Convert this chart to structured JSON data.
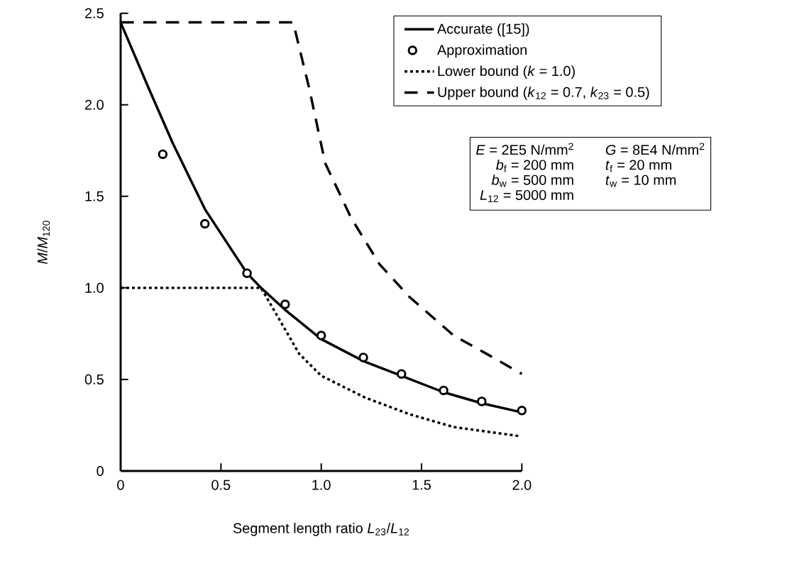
{
  "chart_data": {
    "type": "line",
    "xlabel": "Segment length ratio *L*$_{23}$/*L*$_{12}$",
    "ylabel": "*M*/*M*$_{120}$",
    "xlim": [
      0,
      2.0
    ],
    "ylim": [
      0,
      2.5
    ],
    "xticks": [
      0,
      0.5,
      {
        "value": 1.0,
        "label": "1.0"
      },
      1.5,
      {
        "value": 2.0,
        "label": "2.0"
      }
    ],
    "yticks": [
      0,
      0.5,
      {
        "value": 1.0,
        "label": "1.0"
      },
      1.5,
      {
        "value": 2.0,
        "label": "2.0"
      },
      2.5
    ],
    "legend": "top right",
    "series": [
      {
        "name": "Accurate ([15])",
        "type": "line",
        "line_style": "solid",
        "color": "#000000",
        "x": [
          0,
          0.14,
          0.26,
          0.42,
          0.63,
          0.7,
          0.82,
          1.0,
          1.21,
          1.4,
          1.61,
          1.8,
          2.0
        ],
        "values": [
          2.45,
          2.09,
          1.79,
          1.43,
          1.08,
          1.0,
          0.88,
          0.72,
          0.6,
          0.52,
          0.43,
          0.37,
          0.32
        ]
      },
      {
        "name": "Approximation",
        "type": "scatter",
        "marker": "circle",
        "color": "#000000",
        "x": [
          0.21,
          0.42,
          0.63,
          0.82,
          1.0,
          1.21,
          1.4,
          1.61,
          1.8,
          2.0
        ],
        "values": [
          1.73,
          1.35,
          1.08,
          0.91,
          0.74,
          0.62,
          0.53,
          0.44,
          0.38,
          0.33
        ]
      },
      {
        "name": "Lower bound (*k* = 1.0)",
        "type": "line",
        "line_style": "dotted",
        "color": "#000000",
        "x": [
          0,
          0.7,
          0.79,
          0.89,
          1.0,
          1.22,
          1.44,
          1.66,
          1.99
        ],
        "values": [
          1.0,
          1.0,
          0.83,
          0.64,
          0.52,
          0.4,
          0.31,
          0.24,
          0.19
        ]
      },
      {
        "name": "Upper bound (*k*$_{12}$ = 0.7, *k*$_{23}$ = 0.5)",
        "type": "line",
        "line_style": "dashed",
        "color": "#000000",
        "x": [
          0,
          0.86,
          0.94,
          1.02,
          1.15,
          1.29,
          1.44,
          1.66,
          1.84,
          2.0
        ],
        "values": [
          2.45,
          2.45,
          2.09,
          1.68,
          1.38,
          1.13,
          0.95,
          0.74,
          0.63,
          0.53
        ]
      }
    ],
    "annotations": [
      "*E* = 2E5 N/mm$^{2}$",
      "*G* = 8E4 N/mm$^{2}$",
      "*b*$_{f}$ = 200 mm",
      "*t*$_{f}$ = 20 mm",
      "*b*$_{w}$ = 500 mm",
      "*t*$_{w}$ = 10 mm",
      "*L*$_{12}$ = 5000 mm"
    ]
  }
}
